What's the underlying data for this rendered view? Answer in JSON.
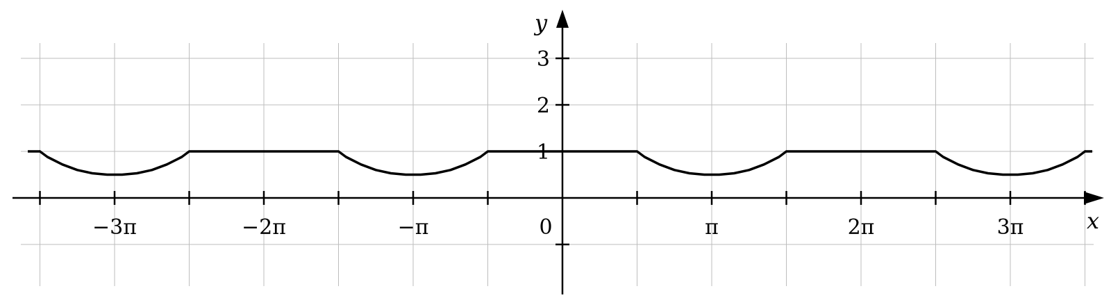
{
  "chart_data": {
    "type": "line",
    "title": "",
    "xlabel": "x",
    "ylabel": "y",
    "x_unit": "π",
    "xlim": [
      -3.5,
      3.5
    ],
    "ylim": [
      -1.5,
      3.5
    ],
    "grid": true,
    "x_ticks": [
      {
        "value": -3.5,
        "label": ""
      },
      {
        "value": -2.5,
        "label": ""
      },
      {
        "value": -1.5,
        "label": ""
      },
      {
        "value": -0.5,
        "label": ""
      },
      {
        "value": 0.5,
        "label": ""
      },
      {
        "value": 1.5,
        "label": ""
      },
      {
        "value": 2.5,
        "label": ""
      },
      {
        "value": 3.5,
        "label": ""
      }
    ],
    "x_tick_labels": [
      {
        "value": -3,
        "label": "−3π"
      },
      {
        "value": -2,
        "label": "−2π"
      },
      {
        "value": -1,
        "label": "−π"
      },
      {
        "value": 0,
        "label": "0"
      },
      {
        "value": 1,
        "label": "π"
      },
      {
        "value": 2,
        "label": "2π"
      },
      {
        "value": 3,
        "label": "3π"
      }
    ],
    "y_ticks": [
      {
        "value": 3,
        "label": "3"
      },
      {
        "value": 2,
        "label": "2"
      },
      {
        "value": 1,
        "label": "1"
      },
      {
        "value": -1,
        "label": ""
      }
    ],
    "series": [
      {
        "color": "#000000",
        "points": [
          [
            -3.5,
            1
          ],
          [
            -3.45,
            0.88
          ],
          [
            -3.35,
            0.72
          ],
          [
            -3.25,
            0.6
          ],
          [
            -3.15,
            0.53
          ],
          [
            -3.05,
            0.5
          ],
          [
            -3,
            0.5
          ],
          [
            -2.95,
            0.5
          ],
          [
            -2.85,
            0.53
          ],
          [
            -2.75,
            0.6
          ],
          [
            -2.65,
            0.72
          ],
          [
            -2.55,
            0.88
          ],
          [
            -2.5,
            1
          ],
          [
            -1.5,
            1
          ],
          [
            -1.45,
            0.88
          ],
          [
            -1.35,
            0.72
          ],
          [
            -1.25,
            0.6
          ],
          [
            -1.15,
            0.53
          ],
          [
            -1.05,
            0.5
          ],
          [
            -1,
            0.5
          ],
          [
            -0.95,
            0.5
          ],
          [
            -0.85,
            0.53
          ],
          [
            -0.75,
            0.6
          ],
          [
            -0.65,
            0.72
          ],
          [
            -0.55,
            0.88
          ],
          [
            -0.5,
            1
          ],
          [
            0.5,
            1
          ],
          [
            0.55,
            0.88
          ],
          [
            0.65,
            0.72
          ],
          [
            0.75,
            0.6
          ],
          [
            0.85,
            0.53
          ],
          [
            0.95,
            0.5
          ],
          [
            1,
            0.5
          ],
          [
            1.05,
            0.5
          ],
          [
            1.15,
            0.53
          ],
          [
            1.25,
            0.6
          ],
          [
            1.35,
            0.72
          ],
          [
            1.45,
            0.88
          ],
          [
            1.5,
            1
          ],
          [
            2.5,
            1
          ],
          [
            2.55,
            0.88
          ],
          [
            2.65,
            0.72
          ],
          [
            2.75,
            0.6
          ],
          [
            2.85,
            0.53
          ],
          [
            2.95,
            0.5
          ],
          [
            3,
            0.5
          ],
          [
            3.05,
            0.5
          ],
          [
            3.15,
            0.53
          ],
          [
            3.25,
            0.6
          ],
          [
            3.35,
            0.72
          ],
          [
            3.45,
            0.88
          ],
          [
            3.5,
            1
          ]
        ]
      }
    ],
    "colors": {
      "axis": "#000000",
      "grid": "#bdbdbd"
    }
  }
}
